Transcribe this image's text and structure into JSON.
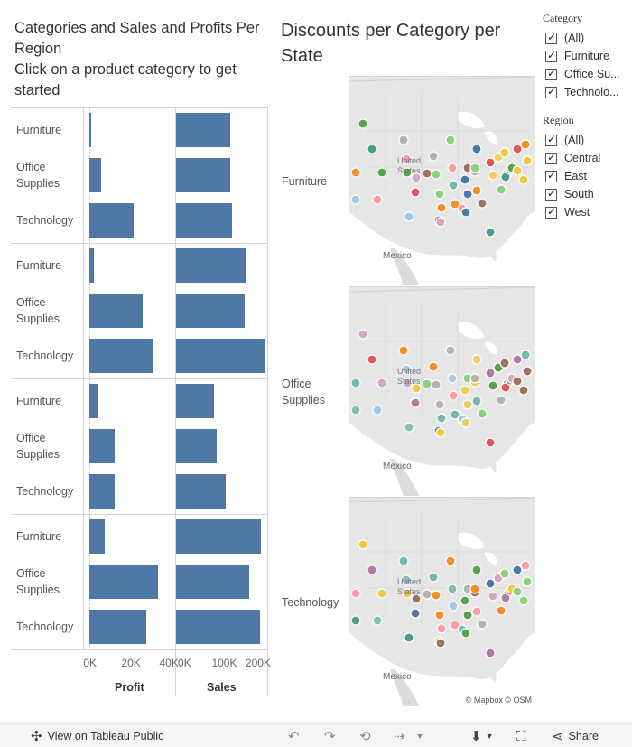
{
  "left_chart": {
    "title_line1": "Categories and Sales and Profits Per Region",
    "title_line2": "Click on a product category to get started"
  },
  "right_chart": {
    "title": "Discounts per Category per State",
    "rows": [
      {
        "line1": "Furniture",
        "line2": ""
      },
      {
        "line1": "Office",
        "line2": "Supplies"
      },
      {
        "line1": "Technology",
        "line2": ""
      }
    ],
    "country_label": "Mexico",
    "us_label_line1": "United",
    "us_label_line2": "States",
    "attribution_mapbox": "© Mapbox",
    "attribution_osm": "© OSM"
  },
  "chart_data": {
    "type": "bar",
    "orientation": "horizontal",
    "panes": [
      "Profit",
      "Sales"
    ],
    "region_groups": 4,
    "categories": [
      "Furniture",
      "Office Supplies",
      "Technology"
    ],
    "category_labels": [
      {
        "line1": "Furniture",
        "line2": ""
      },
      {
        "line1": "Office",
        "line2": "Supplies"
      },
      {
        "line1": "Technology",
        "line2": ""
      }
    ],
    "groups": [
      {
        "profit": [
          1000,
          6000,
          23000
        ],
        "sales": [
          162000,
          164000,
          167000
        ]
      },
      {
        "profit": [
          2000,
          28000,
          33000
        ],
        "sales": [
          208000,
          205000,
          265000
        ]
      },
      {
        "profit": [
          4000,
          13000,
          13000
        ],
        "sales": [
          115000,
          124000,
          149000
        ]
      },
      {
        "profit": [
          8000,
          36000,
          30000
        ],
        "sales": [
          253000,
          220000,
          250000
        ]
      }
    ],
    "profit_axis": {
      "title": "Profit",
      "ticks": [
        "0K",
        "20K",
        "40K"
      ],
      "tick_values": [
        0,
        20000,
        40000
      ],
      "xlim": [
        -3000,
        45000
      ]
    },
    "sales_axis": {
      "title": "Sales",
      "ticks": [
        "0K",
        "100K",
        "200K"
      ],
      "tick_values": [
        0,
        100000,
        200000
      ],
      "xlim": [
        0,
        275000
      ]
    },
    "bar_color": "#4e79a7"
  },
  "filters": {
    "category": {
      "title": "Category",
      "items": [
        "(All)",
        "Furniture",
        "Office Su...",
        "Technolo..."
      ]
    },
    "region": {
      "title": "Region",
      "items": [
        "(All)",
        "Central",
        "East",
        "South",
        "West"
      ]
    }
  },
  "toolbar": {
    "view_label": "View on Tableau Public",
    "share_label": "Share"
  }
}
